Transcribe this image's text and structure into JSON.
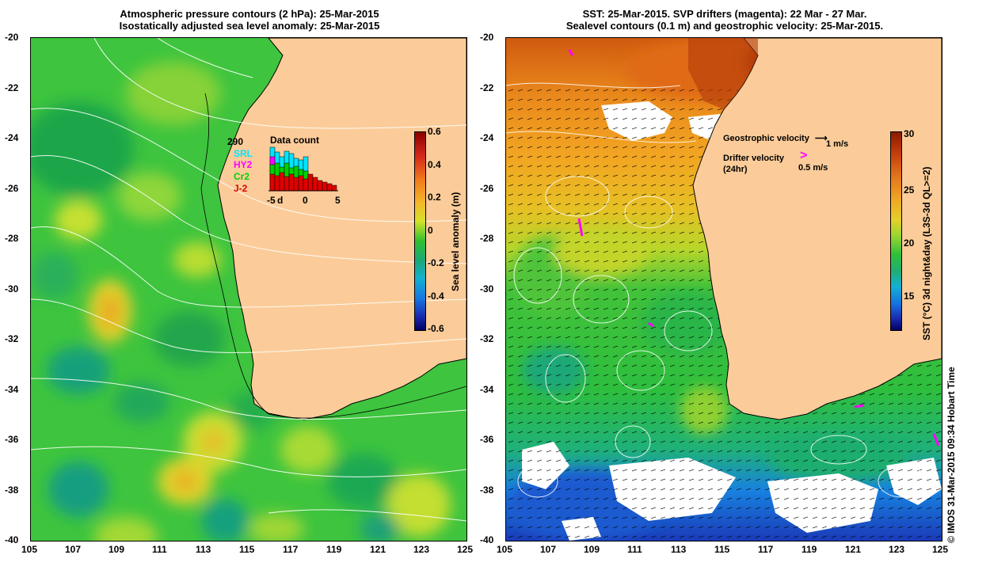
{
  "left_panel": {
    "title_line1": "Atmospheric pressure contours (2 hPa): 25-Mar-2015",
    "title_line2": "Isostatically adjusted sea level anomaly: 25-Mar-2015",
    "colorbar_label": "Sea level anomaly (m)",
    "colorbar_ticks": [
      "0.6",
      "0.4",
      "0.2",
      "0",
      "-0.2",
      "-0.4",
      "-0.6"
    ],
    "data_count": {
      "title": "Data count",
      "total": "290",
      "missions": [
        "SRL",
        "HY2",
        "Cr2",
        "J-2"
      ],
      "mission_colors": [
        "#00e5ff",
        "#ff00ff",
        "#00d000",
        "#e00000"
      ],
      "axis_labels": [
        "-5",
        "d",
        "0",
        "5"
      ]
    }
  },
  "right_panel": {
    "title_line1": "SST: 25-Mar-2015. SVP drifters (magenta): 22 Mar - 27 Mar.",
    "title_line2": "Sealevel contours (0.1 m) and geostrophic velocity: 25-Mar-2015.",
    "colorbar_label": "SST (°C) 3d night&day (L3S-3d QL>=2)",
    "colorbar_ticks": [
      "30",
      "25",
      "20",
      "15"
    ],
    "legend": {
      "geostrophic_label": "Geostrophic velocity",
      "geostrophic_scale": "1 m/s",
      "drifter_label": "Drifter velocity",
      "drifter_sub": "(24hr)",
      "drifter_scale": "0.5 m/s"
    }
  },
  "axes": {
    "lat_ticks": [
      "-20",
      "-22",
      "-24",
      "-26",
      "-28",
      "-30",
      "-32",
      "-34",
      "-36",
      "-38",
      "-40"
    ],
    "lon_ticks": [
      "105",
      "107",
      "109",
      "111",
      "113",
      "115",
      "117",
      "119",
      "121",
      "123",
      "125"
    ]
  },
  "credit": "© IMOS 31-Mar-2015 09:34 Hobart Time"
}
